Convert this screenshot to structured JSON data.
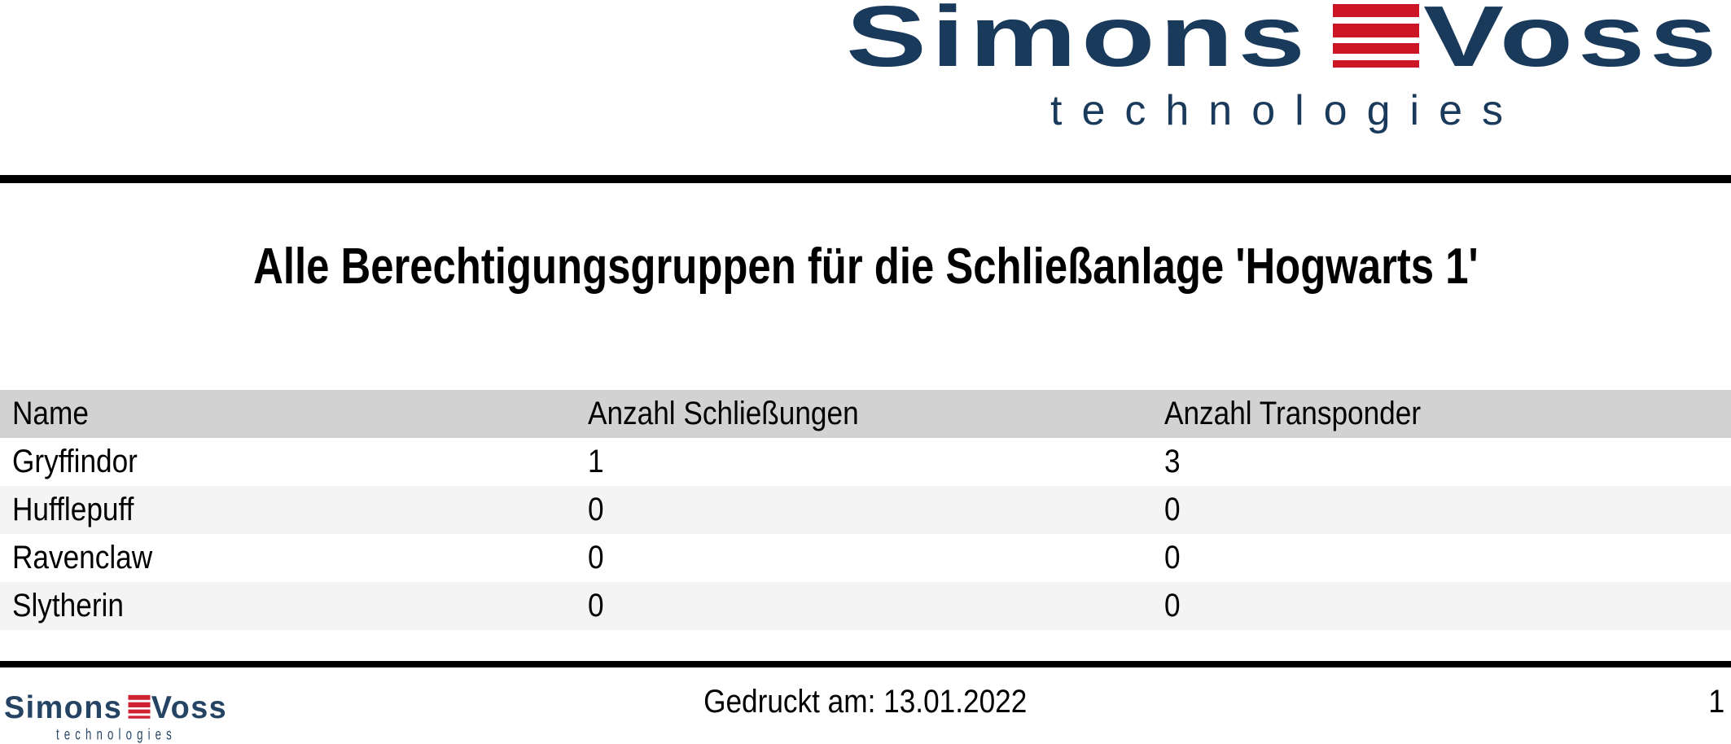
{
  "brand": {
    "name_left": "Simons",
    "name_right": "Voss",
    "subtitle": "technologies",
    "colors": {
      "navy": "#1a3a5c",
      "red": "#cc1626"
    }
  },
  "title": "Alle Berechtigungsgruppen für die Schließanlage 'Hogwarts 1'",
  "table": {
    "headers": [
      "Name",
      "Anzahl Schließungen",
      "Anzahl Transponder"
    ],
    "rows": [
      {
        "name": "Gryffindor",
        "schliessungen": "1",
        "transponder": "3"
      },
      {
        "name": "Hufflepuff",
        "schliessungen": "0",
        "transponder": "0"
      },
      {
        "name": "Ravenclaw",
        "schliessungen": "0",
        "transponder": "0"
      },
      {
        "name": "Slytherin",
        "schliessungen": "0",
        "transponder": "0"
      }
    ]
  },
  "footer": {
    "printed_on": "Gedruckt am: 13.01.2022",
    "page_number": "1"
  }
}
